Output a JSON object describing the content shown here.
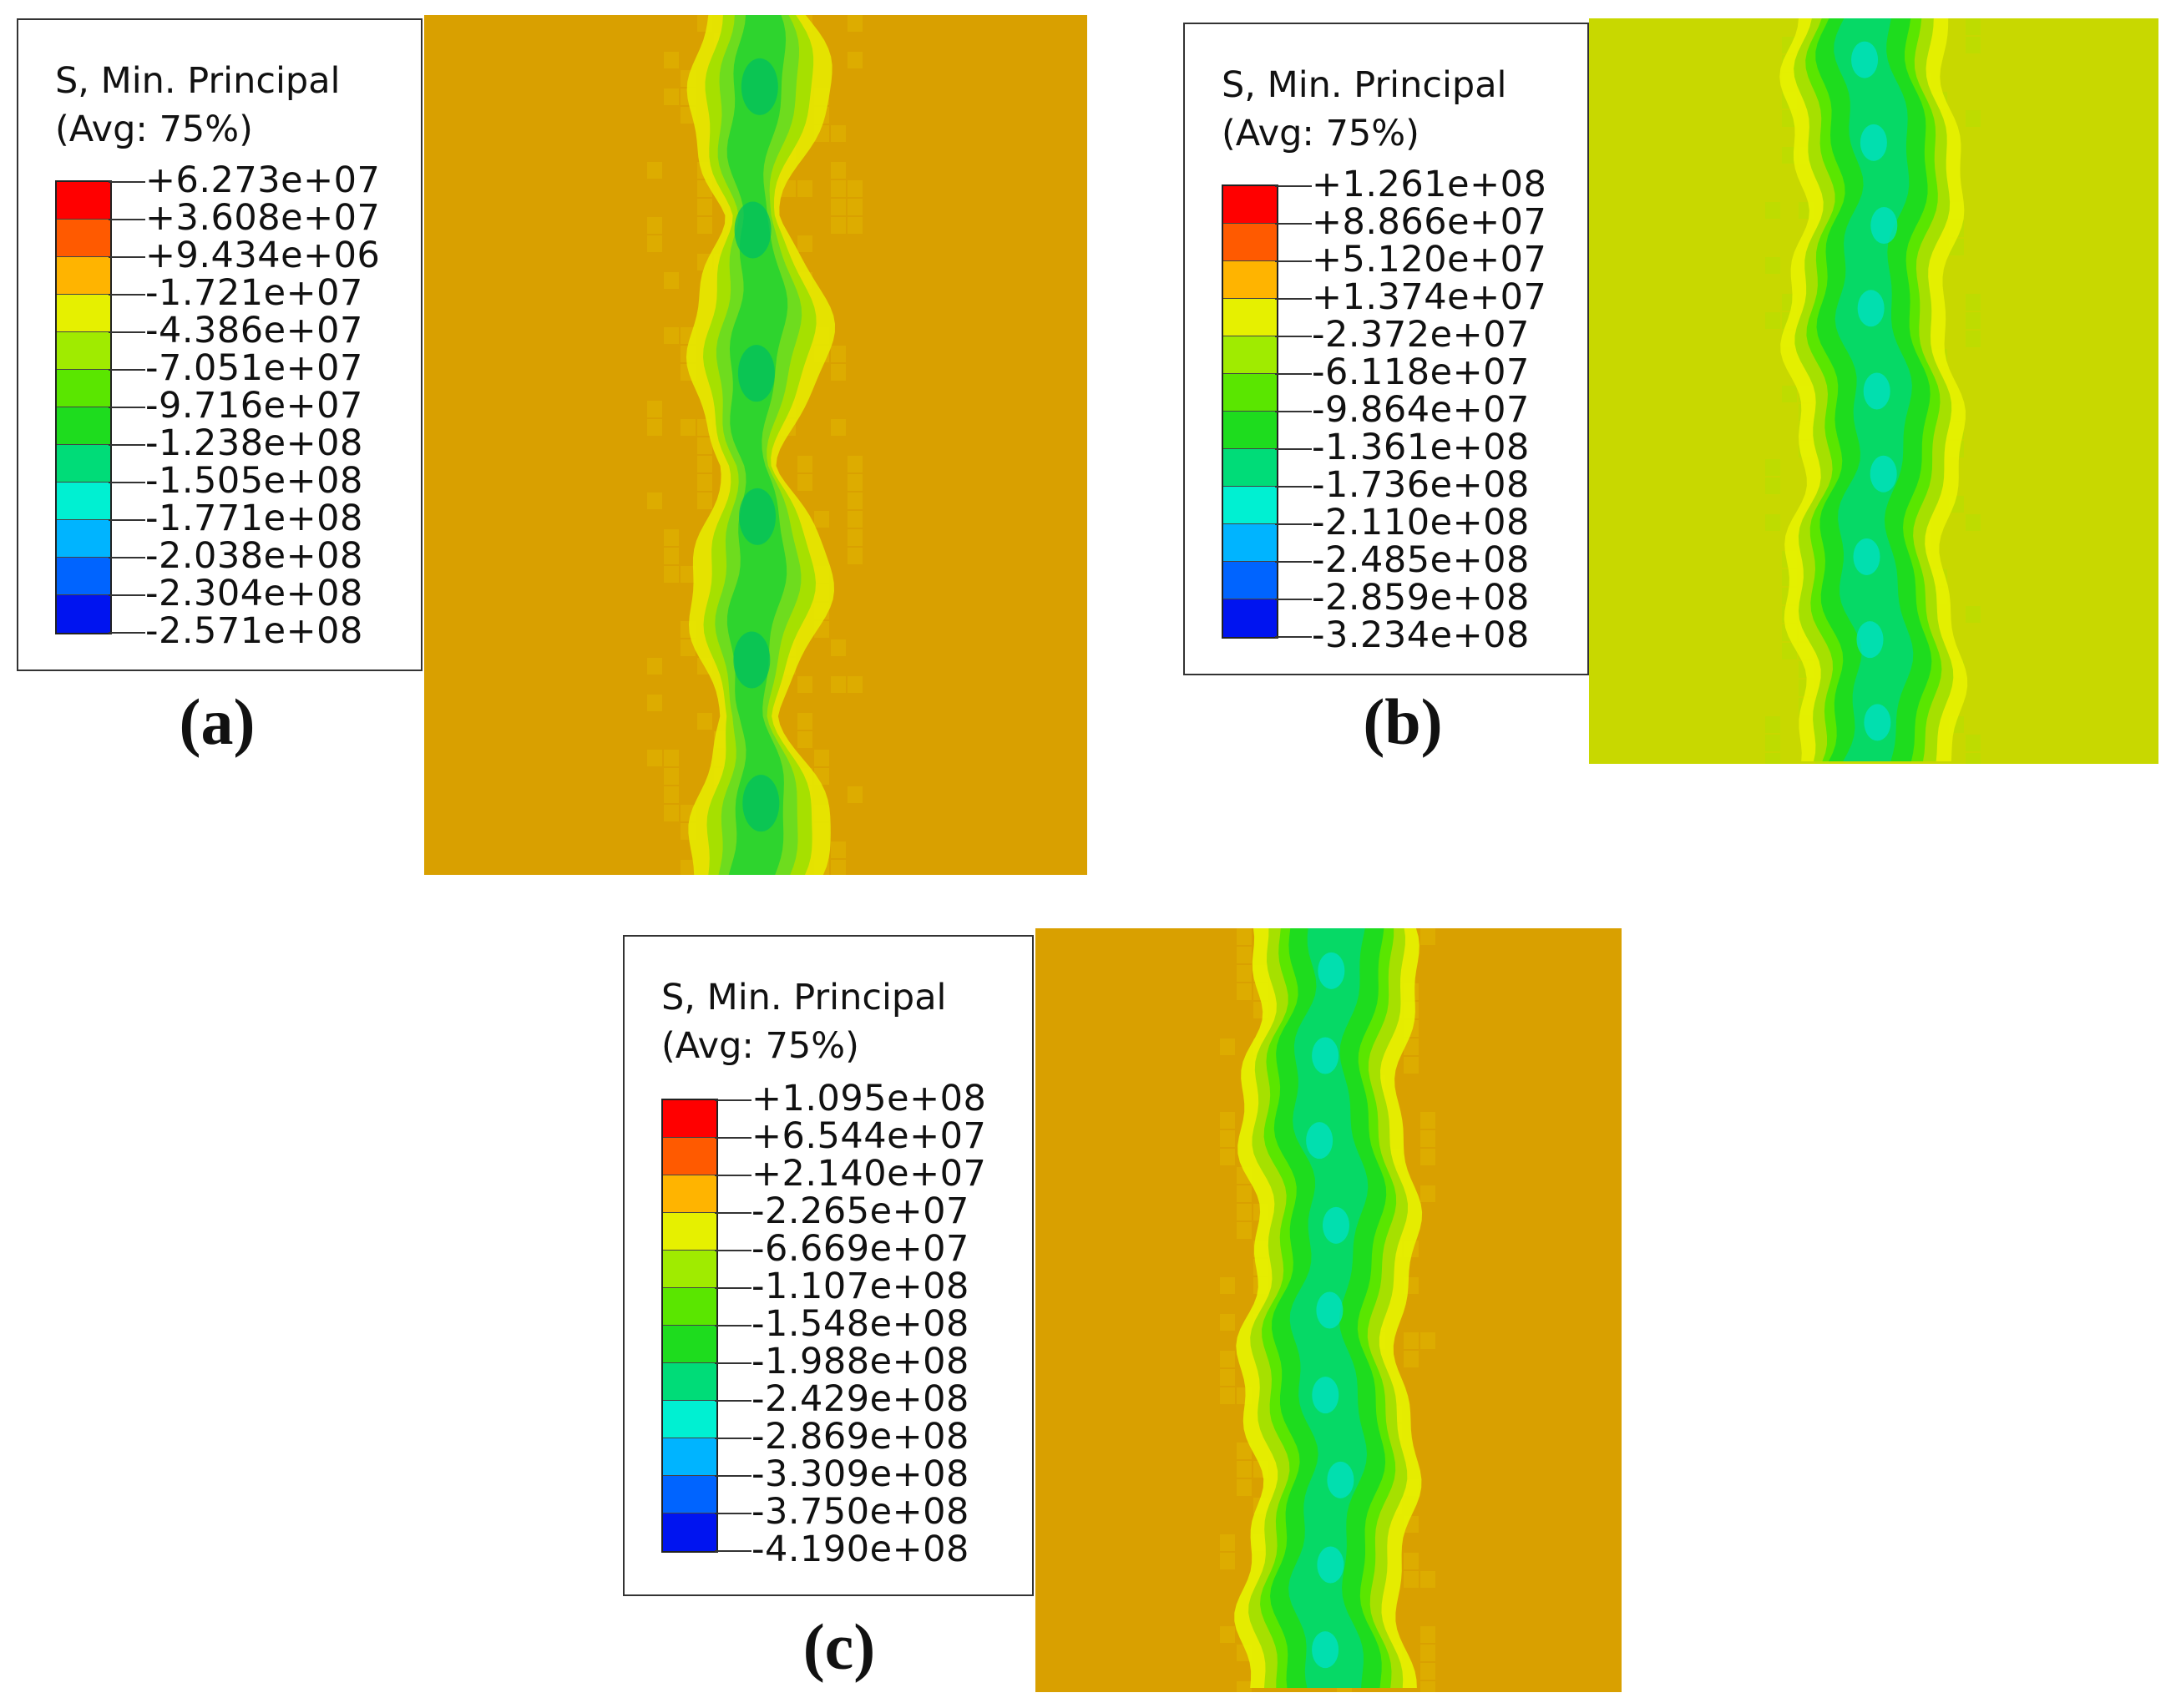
{
  "figures": [
    {
      "id": "a",
      "panel_label": "(a)",
      "legend": {
        "title_line1": "S, Min. Principal",
        "title_line2": "(Avg: 75%)",
        "values": [
          "+6.273e+07",
          "+3.608e+07",
          "+9.434e+06",
          "-1.721e+07",
          "-4.386e+07",
          "-7.051e+07",
          "-9.716e+07",
          "-1.238e+08",
          "-1.505e+08",
          "-1.771e+08",
          "-2.038e+08",
          "-2.304e+08",
          "-2.571e+08"
        ]
      },
      "background_color": "#D9A000",
      "band_shape": "beaded"
    },
    {
      "id": "b",
      "panel_label": "(b)",
      "legend": {
        "title_line1": "S, Min. Principal",
        "title_line2": "(Avg: 75%)",
        "values": [
          "+1.261e+08",
          "+8.866e+07",
          "+5.120e+07",
          "+1.374e+07",
          "-2.372e+07",
          "-6.118e+07",
          "-9.864e+07",
          "-1.361e+08",
          "-1.736e+08",
          "-2.110e+08",
          "-2.485e+08",
          "-2.859e+08",
          "-3.234e+08"
        ]
      },
      "background_color": "#C8D800",
      "band_shape": "continuous"
    },
    {
      "id": "c",
      "panel_label": "(c)",
      "legend": {
        "title_line1": "S, Min. Principal",
        "title_line2": "(Avg: 75%)",
        "values": [
          "+1.095e+08",
          "+6.544e+07",
          "+2.140e+07",
          "-2.265e+07",
          "-6.669e+07",
          "-1.107e+08",
          "-1.548e+08",
          "-1.988e+08",
          "-2.429e+08",
          "-2.869e+08",
          "-3.309e+08",
          "-3.750e+08",
          "-4.190e+08"
        ]
      },
      "background_color": "#D9A000",
      "band_shape": "continuous"
    }
  ],
  "colormap": [
    "#FF0000",
    "#FF5A00",
    "#FFB400",
    "#E6F000",
    "#A0EB00",
    "#5AE600",
    "#1EDC1E",
    "#00DC78",
    "#00F0D2",
    "#00B4FF",
    "#0064FF",
    "#0014F0"
  ]
}
